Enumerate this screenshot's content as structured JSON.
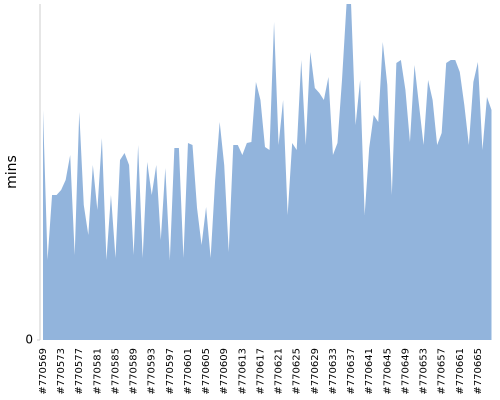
{
  "chart_data": {
    "type": "area",
    "y_label": "mins",
    "color": "#92b4dc",
    "categories": [
      "#770569",
      null,
      null,
      null,
      "#770573",
      null,
      null,
      null,
      "#770577",
      null,
      null,
      null,
      "#770581",
      null,
      null,
      null,
      "#770585",
      null,
      null,
      null,
      "#770589",
      null,
      null,
      null,
      "#770593",
      null,
      null,
      null,
      "#770597",
      null,
      null,
      null,
      "#770601",
      null,
      null,
      null,
      "#770605",
      null,
      null,
      null,
      "#770609",
      null,
      null,
      null,
      "#770613",
      null,
      null,
      null,
      "#770617",
      null,
      null,
      null,
      "#770621",
      null,
      null,
      null,
      "#770625",
      null,
      null,
      null,
      "#770629",
      null,
      null,
      null,
      "#770633",
      null,
      null,
      null,
      "#770637",
      null,
      null,
      null,
      "#770641",
      null,
      null,
      null,
      "#770645",
      null,
      null,
      null,
      "#770649",
      null,
      null,
      null,
      "#770653",
      null,
      null,
      null,
      "#770657",
      null,
      null,
      null,
      "#770661",
      null,
      null,
      null,
      "#770665",
      null,
      null,
      null
    ],
    "values": [
      230,
      80,
      145,
      145,
      150,
      160,
      185,
      85,
      228,
      135,
      105,
      175,
      130,
      202,
      80,
      145,
      82,
      180,
      187,
      175,
      85,
      195,
      82,
      178,
      145,
      175,
      100,
      172,
      80,
      192,
      192,
      82,
      197,
      195,
      132,
      95,
      133,
      82,
      160,
      218,
      175,
      88,
      195,
      195,
      185,
      197,
      198,
      258,
      240,
      193,
      190,
      318,
      195,
      240,
      125,
      197,
      190,
      280,
      195,
      288,
      252,
      247,
      240,
      263,
      185,
      197,
      260,
      336,
      336,
      215,
      260,
      125,
      192,
      225,
      218,
      298,
      255,
      145,
      277,
      280,
      250,
      198,
      275,
      235,
      195,
      260,
      240,
      195,
      207,
      277,
      280,
      280,
      268,
      235,
      195,
      258,
      278,
      190,
      243,
      230
    ],
    "ylim": [
      0,
      336
    ],
    "yticks": [
      0
    ]
  }
}
